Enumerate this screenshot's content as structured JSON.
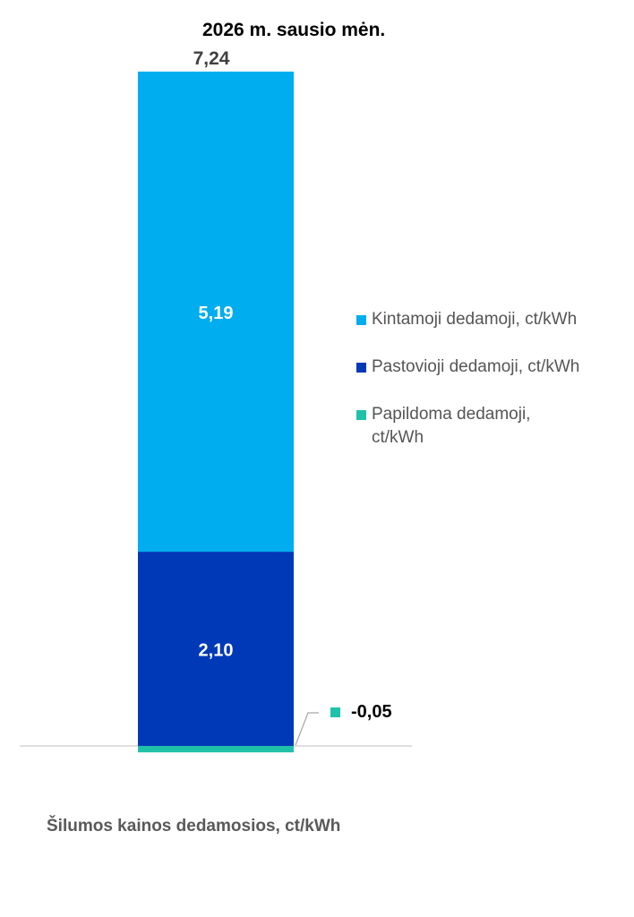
{
  "chart_data": {
    "type": "bar",
    "stacked": true,
    "categories": [
      "2026 m.  sausio mėn."
    ],
    "total_label": "7,24",
    "series": [
      {
        "name": "Papildoma dedamoji, ct/kWh",
        "values": [
          -0.05
        ],
        "label": "-0,05",
        "color": "#1fc2a8"
      },
      {
        "name": "Pastovioji dedamoji, ct/kWh",
        "values": [
          2.1
        ],
        "label": "2,10",
        "color": "#0039b8"
      },
      {
        "name": "Kintamoji dedamoji, ct/kWh",
        "values": [
          5.19
        ],
        "label": "5,19",
        "color": "#00adef"
      }
    ],
    "legend": {
      "placement": "right",
      "items": [
        {
          "label": "Kintamoji dedamoji, ct/kWh",
          "color": "#00adef"
        },
        {
          "label": "Pastovioji dedamoji, ct/kWh",
          "color": "#0039b8"
        },
        {
          "label": "Papildoma dedamoji, ct/kWh",
          "color": "#1fc2a8"
        }
      ]
    },
    "xlabel": "Šilumos kainos dedamosios, ct/kWh",
    "ylim": [
      -0.05,
      7.24
    ],
    "grid": false
  }
}
